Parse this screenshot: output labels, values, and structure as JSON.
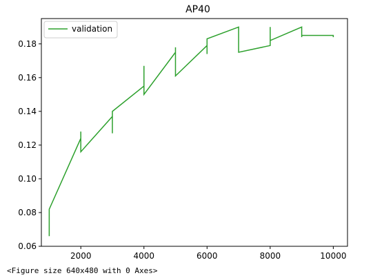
{
  "chart_data": {
    "type": "line",
    "title": "AP40",
    "xlabel": "",
    "ylabel": "",
    "xlim": [
      750,
      10450
    ],
    "ylim": [
      0.06,
      0.195
    ],
    "xticks": [
      2000,
      4000,
      6000,
      8000,
      10000
    ],
    "xtick_labels": [
      "2000",
      "4000",
      "6000",
      "8000",
      "10000"
    ],
    "yticks": [
      0.06,
      0.08,
      0.1,
      0.12,
      0.14,
      0.16,
      0.18
    ],
    "ytick_labels": [
      "0.06",
      "0.08",
      "0.10",
      "0.12",
      "0.14",
      "0.16",
      "0.18"
    ],
    "grid": false,
    "legend_position": "upper-left",
    "series": [
      {
        "name": "validation",
        "color": "#2ca02c",
        "points": [
          [
            1000,
            0.066
          ],
          [
            1000,
            0.082
          ],
          [
            2000,
            0.124
          ],
          [
            2000,
            0.128
          ],
          [
            2000,
            0.116
          ],
          [
            3000,
            0.137
          ],
          [
            3000,
            0.127
          ],
          [
            3000,
            0.14
          ],
          [
            4000,
            0.155
          ],
          [
            4000,
            0.167
          ],
          [
            4000,
            0.15
          ],
          [
            5000,
            0.175
          ],
          [
            5000,
            0.178
          ],
          [
            5000,
            0.161
          ],
          [
            6000,
            0.179
          ],
          [
            6000,
            0.174
          ],
          [
            6000,
            0.183
          ],
          [
            7000,
            0.19
          ],
          [
            7000,
            0.175
          ],
          [
            8000,
            0.179
          ],
          [
            8000,
            0.19
          ],
          [
            8000,
            0.182
          ],
          [
            9000,
            0.19
          ],
          [
            9000,
            0.184
          ],
          [
            9000,
            0.185
          ],
          [
            10000,
            0.185
          ],
          [
            10000,
            0.184
          ],
          [
            10000,
            0.185
          ]
        ]
      }
    ]
  },
  "caption": "<Figure size 640x480 with 0 Axes>"
}
